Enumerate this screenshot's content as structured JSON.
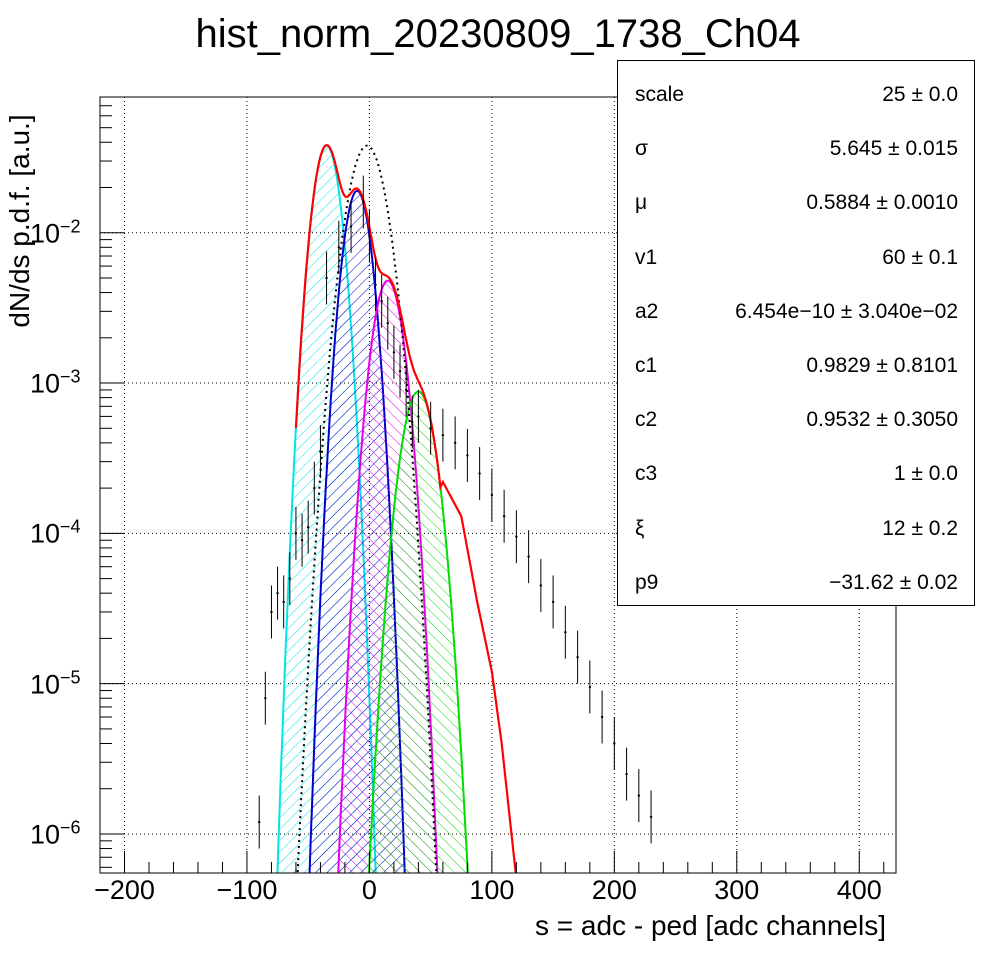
{
  "chart_data": {
    "type": "line",
    "title": "hist_norm_20230809_1738_Ch04",
    "xlabel": "s = adc - ped [adc channels]",
    "ylabel": "dN/ds p.d.f. [a.u.]",
    "xlim": [
      -220,
      430
    ],
    "ylim": [
      5.5e-07,
      0.08
    ],
    "yscale": "log",
    "grid": true,
    "x_ticks": [
      "−200",
      "−100",
      "0",
      "100",
      "200",
      "300",
      "400"
    ],
    "x_tick_values": [
      -200,
      -100,
      0,
      100,
      200,
      300,
      400
    ],
    "y_ticks": [
      {
        "base": "10",
        "exp": "−6",
        "value": 1e-06
      },
      {
        "base": "10",
        "exp": "−5",
        "value": 1e-05
      },
      {
        "base": "10",
        "exp": "−4",
        "value": 0.0001
      },
      {
        "base": "10",
        "exp": "−3",
        "value": 0.001
      },
      {
        "base": "10",
        "exp": "−2",
        "value": 0.01
      }
    ],
    "series": [
      {
        "color": "#00e5e5",
        "peak_x": -35,
        "peak_y": 0.038,
        "sigma": 8.5,
        "hatched": true
      },
      {
        "color": "#0000cc",
        "peak_x": -10,
        "peak_y": 0.019,
        "sigma": 8.5,
        "hatched": true
      },
      {
        "color": "#e600e6",
        "peak_x": 15,
        "peak_y": 0.0048,
        "sigma": 9.5,
        "hatched": true
      },
      {
        "color": "#00dd00",
        "peak_x": 40,
        "peak_y": 0.00088,
        "sigma": 10.5,
        "hatched": true
      },
      {
        "color": "#000000",
        "style": "dotted",
        "peak_x": -2,
        "peak_y": 0.038,
        "sigma": 12
      }
    ],
    "total_fit_color": "#ff0000",
    "total_fit_tail": [
      [
        60,
        0.00022
      ],
      [
        75,
        0.00013
      ],
      [
        88,
        3.5e-05
      ],
      [
        100,
        1.2e-05
      ],
      [
        108,
        4e-06
      ],
      [
        115,
        1.2e-06
      ],
      [
        120,
        5e-07
      ]
    ],
    "data_points": [
      [
        -90,
        1.2e-06
      ],
      [
        -85,
        8e-06
      ],
      [
        -80,
        3e-05
      ],
      [
        -75,
        4e-05
      ],
      [
        -70,
        3.5e-05
      ],
      [
        -65,
        5e-05
      ],
      [
        -60,
        0.0001
      ],
      [
        -55,
        9e-05
      ],
      [
        -50,
        0.00011
      ],
      [
        -45,
        0.0002
      ],
      [
        -40,
        0.00035
      ],
      [
        -35,
        0.005
      ],
      [
        -25,
        0.008
      ],
      [
        -15,
        0.011
      ],
      [
        -5,
        0.016
      ],
      [
        0,
        0.0095
      ],
      [
        5,
        0.0045
      ],
      [
        10,
        0.0035
      ],
      [
        15,
        0.0025
      ],
      [
        20,
        0.0016
      ],
      [
        25,
        0.0012
      ],
      [
        30,
        0.0009
      ],
      [
        35,
        0.00055
      ],
      [
        40,
        0.0006
      ],
      [
        50,
        0.0005
      ],
      [
        60,
        0.00045
      ],
      [
        70,
        0.0004
      ],
      [
        80,
        0.00033
      ],
      [
        90,
        0.00025
      ],
      [
        100,
        0.00018
      ],
      [
        110,
        0.00013
      ],
      [
        120,
        9.5e-05
      ],
      [
        130,
        7e-05
      ],
      [
        140,
        4.5e-05
      ],
      [
        150,
        3.5e-05
      ],
      [
        160,
        2.2e-05
      ],
      [
        170,
        1.5e-05
      ],
      [
        180,
        9.5e-06
      ],
      [
        190,
        6e-06
      ],
      [
        200,
        4e-06
      ],
      [
        210,
        2.5e-06
      ],
      [
        220,
        1.8e-06
      ],
      [
        230,
        1.3e-06
      ]
    ],
    "stats": [
      {
        "name": "scale",
        "value": "25 ± 0.0"
      },
      {
        "name": "σ",
        "value": "5.645 ± 0.015"
      },
      {
        "name": "μ",
        "value": "0.5884 ± 0.0010"
      },
      {
        "name": "v1",
        "value": "60 ± 0.1"
      },
      {
        "name": "a2",
        "value": "6.454e−10 ± 3.040e−02"
      },
      {
        "name": "c1",
        "value": "0.9829 ± 0.8101"
      },
      {
        "name": "c2",
        "value": "0.9532 ± 0.3050"
      },
      {
        "name": "c3",
        "value": "1 ± 0.0"
      },
      {
        "name": "ξ",
        "value": "12 ± 0.2"
      },
      {
        "name": "p9",
        "value": "−31.62 ± 0.02"
      }
    ]
  }
}
